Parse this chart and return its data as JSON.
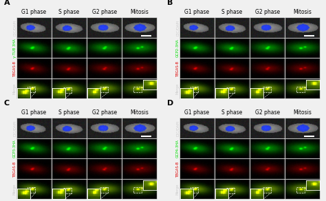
{
  "panels": [
    "A",
    "B",
    "C",
    "D"
  ],
  "col_labels": [
    "G1 phase",
    "S phase",
    "G2 phase",
    "Mitosis"
  ],
  "row_labels_A": [
    "DIC/DAPI",
    "γ-TUB 3HA",
    "TBGAS-B",
    "Merge"
  ],
  "row_labels_B": [
    "DIC/DAPI",
    "GCP2-3HA",
    "TBGAS-B",
    "Merge"
  ],
  "row_labels_C": [
    "DIC/DAPI",
    "GCP3-3HA",
    "TBGAS-B",
    "Merge"
  ],
  "row_labels_D": [
    "DIC/DAPI",
    "GCP4-3HA",
    "TBGAS-B",
    "Merge"
  ],
  "bg_color": "#f0f0f0",
  "row_label_color_dic": "#cccccc",
  "row_label_color_green": "#00dd00",
  "row_label_color_red": "#dd0000",
  "row_label_color_merge": "#cccccc",
  "panel_label_fontsize": 8,
  "col_label_fontsize": 5.5,
  "row_label_fontsize": 3.8,
  "figure_width": 4.74,
  "figure_height": 2.92
}
